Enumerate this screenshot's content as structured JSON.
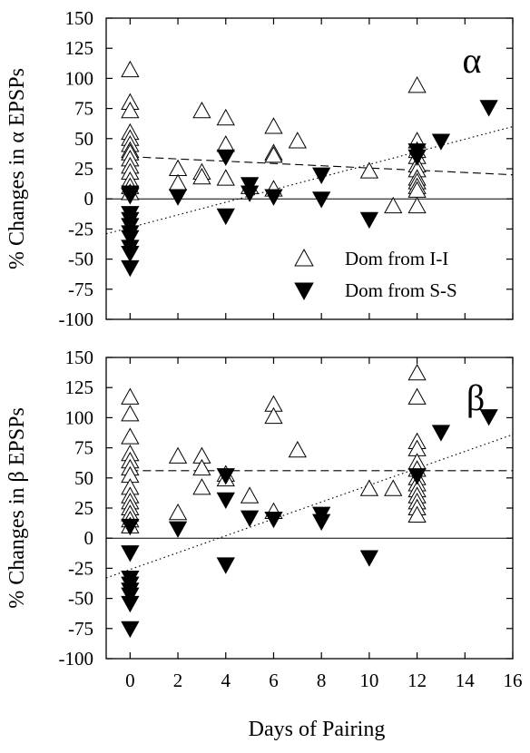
{
  "chart_data": {
    "type": "scatter",
    "xlabel": "Days of Pairing",
    "xlim": [
      -1,
      16
    ],
    "xticks": [
      "0",
      "2",
      "4",
      "6",
      "8",
      "10",
      "12",
      "14",
      "16"
    ],
    "legend": {
      "placement": "bottom-right of top panel",
      "entries": [
        {
          "label": "Dom from I-I",
          "marker": "open-triangle-up"
        },
        {
          "label": "Dom from S-S",
          "marker": "filled-triangle-down"
        }
      ]
    },
    "panels": [
      {
        "id": "alpha",
        "panel_label": "α",
        "ylabel": "% Changes in α EPSPs",
        "ylim": [
          -100,
          150
        ],
        "yticks": [
          "150",
          "125",
          "100",
          "75",
          "50",
          "25",
          "0",
          "-25",
          "-50",
          "-75",
          "-100"
        ],
        "series": [
          {
            "name": "Dom from I-I",
            "points": [
              [
                0,
                107
              ],
              [
                0,
                80
              ],
              [
                0,
                73
              ],
              [
                0,
                55
              ],
              [
                0,
                50
              ],
              [
                0,
                45
              ],
              [
                0,
                40
              ],
              [
                0,
                38
              ],
              [
                0,
                33
              ],
              [
                0,
                27
              ],
              [
                0,
                22
              ],
              [
                0,
                15
              ],
              [
                0,
                10
              ],
              [
                0,
                5
              ],
              [
                2,
                25
              ],
              [
                2,
                13
              ],
              [
                3,
                73
              ],
              [
                3,
                22
              ],
              [
                3,
                18
              ],
              [
                4,
                67
              ],
              [
                4,
                45
              ],
              [
                4,
                17
              ],
              [
                5,
                10
              ],
              [
                6,
                60
              ],
              [
                6,
                38
              ],
              [
                6,
                36
              ],
              [
                6,
                8
              ],
              [
                7,
                48
              ],
              [
                10,
                23
              ],
              [
                11,
                -6
              ],
              [
                12,
                94
              ],
              [
                12,
                48
              ],
              [
                12,
                40
              ],
              [
                12,
                35
              ],
              [
                12,
                28
              ],
              [
                12,
                24
              ],
              [
                12,
                17
              ],
              [
                12,
                14
              ],
              [
                12,
                10
              ],
              [
                12,
                7
              ],
              [
                12,
                -6
              ]
            ]
          },
          {
            "name": "Dom from S-S",
            "points": [
              [
                0,
                5
              ],
              [
                0,
                3
              ],
              [
                0,
                -12
              ],
              [
                0,
                -17
              ],
              [
                0,
                -22
              ],
              [
                0,
                -28
              ],
              [
                0,
                -32
              ],
              [
                0,
                -40
              ],
              [
                0,
                -45
              ],
              [
                0,
                -57
              ],
              [
                2,
                2
              ],
              [
                4,
                35
              ],
              [
                4,
                -14
              ],
              [
                5,
                12
              ],
              [
                5,
                5
              ],
              [
                6,
                2
              ],
              [
                8,
                20
              ],
              [
                8,
                0
              ],
              [
                10,
                -17
              ],
              [
                12,
                40
              ],
              [
                12,
                35
              ],
              [
                13,
                48
              ],
              [
                15,
                76
              ]
            ]
          }
        ],
        "fits": [
          {
            "style": "dashed",
            "from": [
              0,
              35
            ],
            "to": [
              16,
              20
            ]
          },
          {
            "style": "dotted",
            "from": [
              -1,
              -29
            ],
            "to": [
              16,
              60
            ]
          }
        ],
        "zero_line": 0
      },
      {
        "id": "beta",
        "panel_label": "β",
        "ylabel": "% Changes in β EPSPs",
        "ylim": [
          -100,
          150
        ],
        "yticks": [
          "150",
          "125",
          "100",
          "75",
          "50",
          "25",
          "0",
          "-25",
          "-50",
          "-75",
          "-100"
        ],
        "series": [
          {
            "name": "Dom from I-I",
            "points": [
              [
                0,
                117
              ],
              [
                0,
                103
              ],
              [
                0,
                84
              ],
              [
                0,
                70
              ],
              [
                0,
                64
              ],
              [
                0,
                58
              ],
              [
                0,
                52
              ],
              [
                0,
                42
              ],
              [
                0,
                35
              ],
              [
                0,
                30
              ],
              [
                0,
                25
              ],
              [
                0,
                20
              ],
              [
                0,
                15
              ],
              [
                0,
                10
              ],
              [
                2,
                68
              ],
              [
                2,
                21
              ],
              [
                3,
                68
              ],
              [
                3,
                58
              ],
              [
                3,
                42
              ],
              [
                4,
                53
              ],
              [
                4,
                49
              ],
              [
                5,
                35
              ],
              [
                6,
                111
              ],
              [
                6,
                101
              ],
              [
                6,
                22
              ],
              [
                7,
                73
              ],
              [
                10,
                41
              ],
              [
                11,
                41
              ],
              [
                12,
                137
              ],
              [
                12,
                117
              ],
              [
                12,
                80
              ],
              [
                12,
                74
              ],
              [
                12,
                63
              ],
              [
                12,
                57
              ],
              [
                12,
                50
              ],
              [
                12,
                45
              ],
              [
                12,
                40
              ],
              [
                12,
                35
              ],
              [
                12,
                30
              ],
              [
                12,
                25
              ],
              [
                12,
                19
              ]
            ]
          },
          {
            "name": "Dom from S-S",
            "points": [
              [
                0,
                10
              ],
              [
                0,
                -12
              ],
              [
                0,
                -33
              ],
              [
                0,
                -38
              ],
              [
                0,
                -43
              ],
              [
                0,
                -47
              ],
              [
                0,
                -54
              ],
              [
                0,
                -75
              ],
              [
                2,
                8
              ],
              [
                4,
                52
              ],
              [
                4,
                32
              ],
              [
                4,
                -22
              ],
              [
                5,
                17
              ],
              [
                6,
                16
              ],
              [
                8,
                20
              ],
              [
                8,
                14
              ],
              [
                10,
                -16
              ],
              [
                12,
                52
              ],
              [
                13,
                88
              ],
              [
                15,
                101
              ]
            ]
          }
        ],
        "fits": [
          {
            "style": "dashed",
            "from": [
              0,
              56
            ],
            "to": [
              16,
              56
            ]
          },
          {
            "style": "dotted",
            "from": [
              -1,
              -33
            ],
            "to": [
              16,
              86
            ]
          }
        ],
        "zero_line": 0
      }
    ]
  }
}
